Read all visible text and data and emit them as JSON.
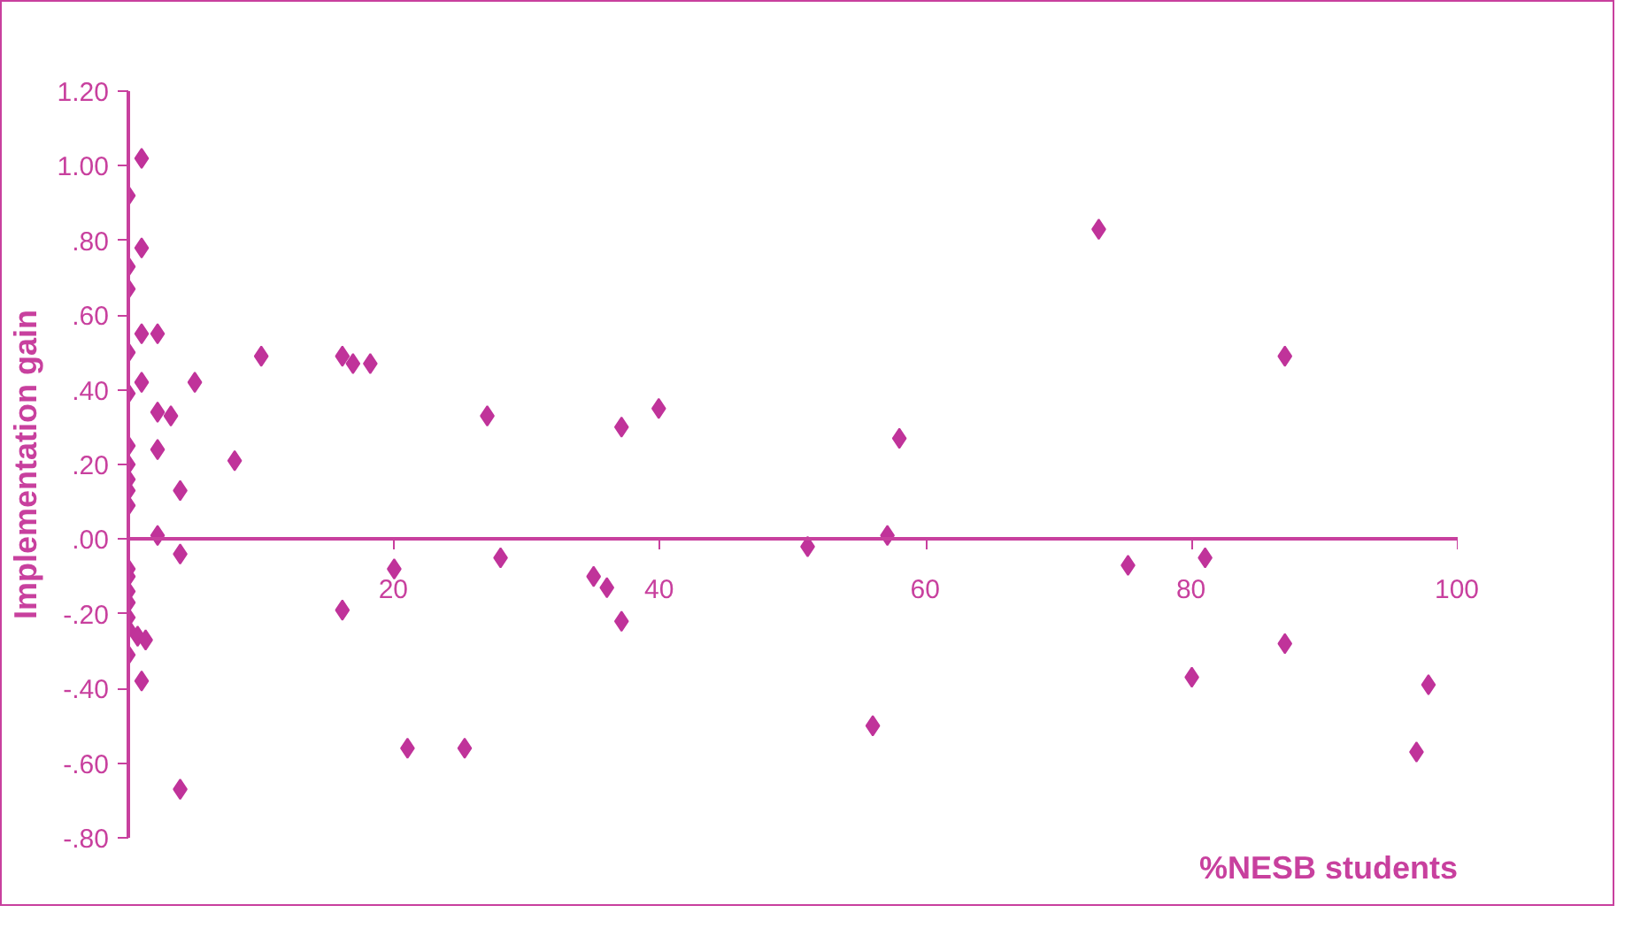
{
  "chart_data": {
    "type": "scatter",
    "xlabel": "%NESB students",
    "ylabel": "Implementation gain",
    "marker": "diamond",
    "grid": false,
    "xlim": [
      0,
      100
    ],
    "xticks": [
      20,
      40,
      60,
      80,
      100
    ],
    "ylim": [
      -0.8,
      1.2
    ],
    "yticks": [
      {
        "value": -0.8,
        "label": "-.80"
      },
      {
        "value": -0.6,
        "label": "-.60"
      },
      {
        "value": -0.4,
        "label": "-.40"
      },
      {
        "value": -0.2,
        "label": "-.20"
      },
      {
        "value": 0,
        "label": ".00"
      },
      {
        "value": 0.2,
        "label": ".20"
      },
      {
        "value": 0.4,
        "label": ".40"
      },
      {
        "value": 0.6,
        "label": ".60"
      },
      {
        "value": 0.8,
        "label": ".80"
      },
      {
        "value": 1.0,
        "label": "1.00"
      },
      {
        "value": 1.2,
        "label": "1.20"
      }
    ],
    "series": [
      {
        "color": "#c0339a",
        "x": [
          1.0,
          0,
          1.0,
          0,
          0,
          1.0,
          2.2,
          0,
          10,
          0,
          1.0,
          5,
          2.2,
          3.2,
          0,
          2.2,
          8,
          0,
          0,
          0,
          3.9,
          0,
          2.2,
          3.9,
          0,
          0,
          0,
          0,
          0,
          0,
          0.7,
          1.3,
          0,
          1.0,
          3.9,
          16.1,
          16.9,
          18.2,
          27,
          37.1,
          39.9,
          58,
          51.1,
          57.1,
          20,
          28,
          35,
          36,
          16.1,
          37.1,
          21,
          25.3,
          56,
          73,
          87,
          75.2,
          81,
          87,
          80,
          97.8,
          96.9
        ],
        "values": [
          1.02,
          0.92,
          0.78,
          0.73,
          0.67,
          0.55,
          0.55,
          0.5,
          0.49,
          0.39,
          0.42,
          0.42,
          0.34,
          0.33,
          0.25,
          0.24,
          0.21,
          0.2,
          0.16,
          0.13,
          0.13,
          0.09,
          0.01,
          -0.04,
          -0.08,
          -0.1,
          -0.14,
          -0.17,
          -0.21,
          -0.24,
          -0.26,
          -0.27,
          -0.31,
          -0.38,
          -0.67,
          0.49,
          0.47,
          0.47,
          0.33,
          0.3,
          0.35,
          0.27,
          -0.02,
          0.01,
          -0.08,
          -0.05,
          -0.1,
          -0.13,
          -0.19,
          -0.22,
          -0.56,
          -0.56,
          -0.5,
          0.83,
          0.49,
          -0.07,
          -0.05,
          -0.28,
          -0.37,
          -0.39,
          -0.57
        ]
      }
    ]
  }
}
